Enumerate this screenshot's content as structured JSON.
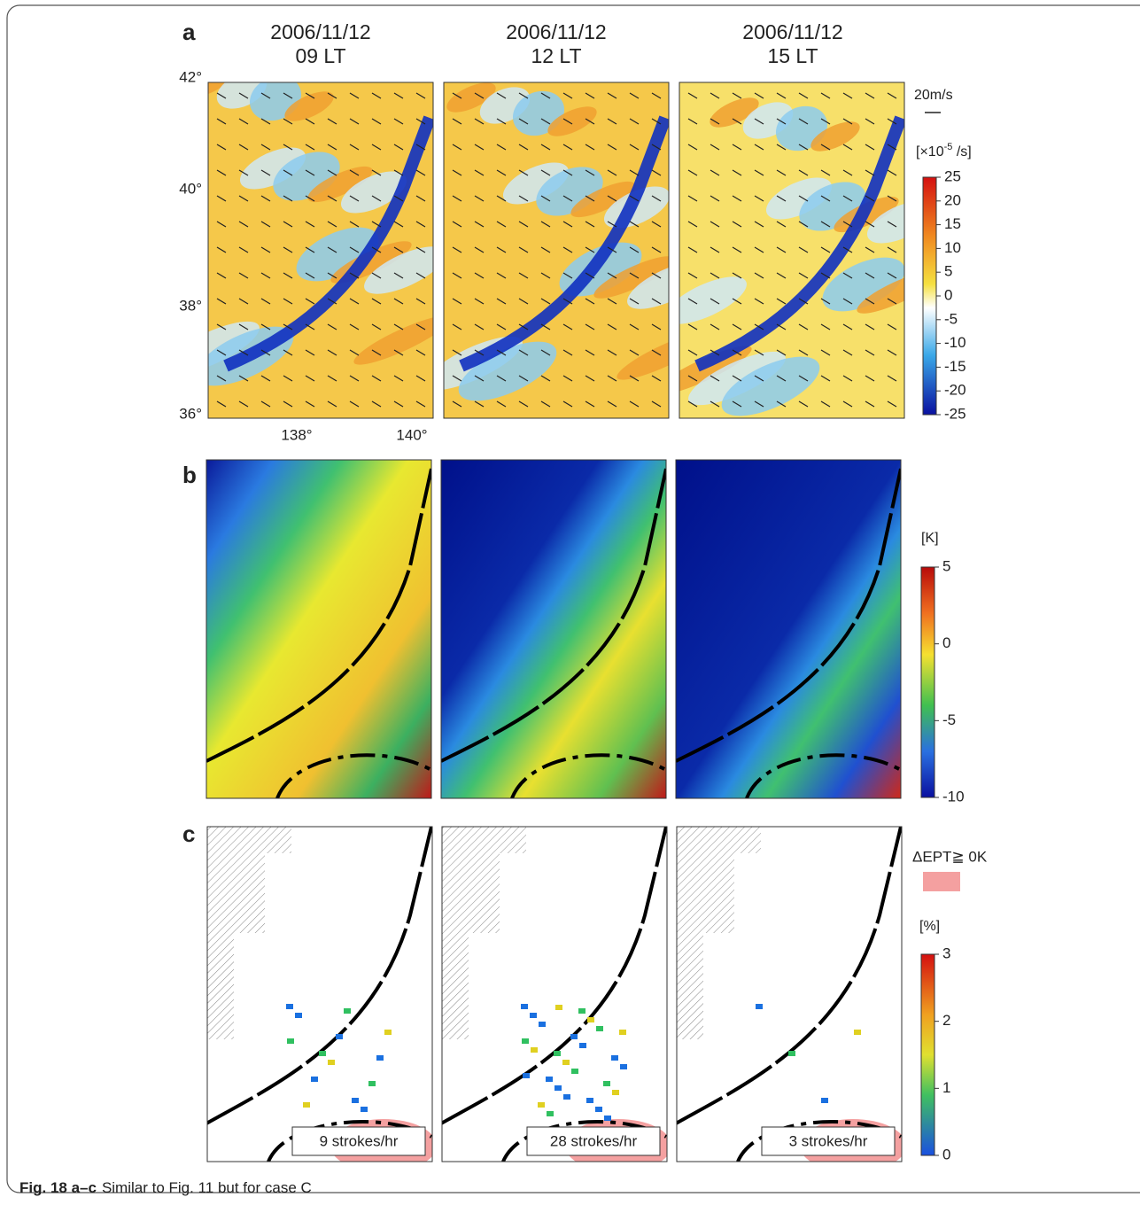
{
  "figure": {
    "panel_labels": [
      "a",
      "b",
      "c"
    ],
    "columns": [
      {
        "date": "2006/11/12",
        "time": "09 LT"
      },
      {
        "date": "2006/11/12",
        "time": "12 LT"
      },
      {
        "date": "2006/11/12",
        "time": "15 LT"
      }
    ],
    "lat_labels": [
      "42°",
      "40°",
      "38°",
      "36°"
    ],
    "lon_labels": [
      "138°",
      "140°"
    ],
    "wind_scale": "20m/s",
    "colorbar_a": {
      "unit_open": "[×10",
      "unit_exp": "-5",
      "unit_close": " /s]",
      "ticks": [
        25,
        20,
        15,
        10,
        5,
        0,
        -5,
        -10,
        -15,
        -20,
        -25
      ]
    },
    "colorbar_b": {
      "unit": "[K]",
      "ticks": [
        5,
        0,
        -5,
        -10
      ]
    },
    "colorbar_c": {
      "legend": "ΔEPT≧ 0K",
      "unit": "[%]",
      "ticks": [
        3,
        2,
        1,
        0
      ]
    },
    "strokes": [
      "9 strokes/hr",
      "28 strokes/hr",
      "3 strokes/hr"
    ]
  },
  "caption": {
    "label": "Fig. 18 a–c",
    "text": "Similar to Fig. 11 but for case C"
  }
}
